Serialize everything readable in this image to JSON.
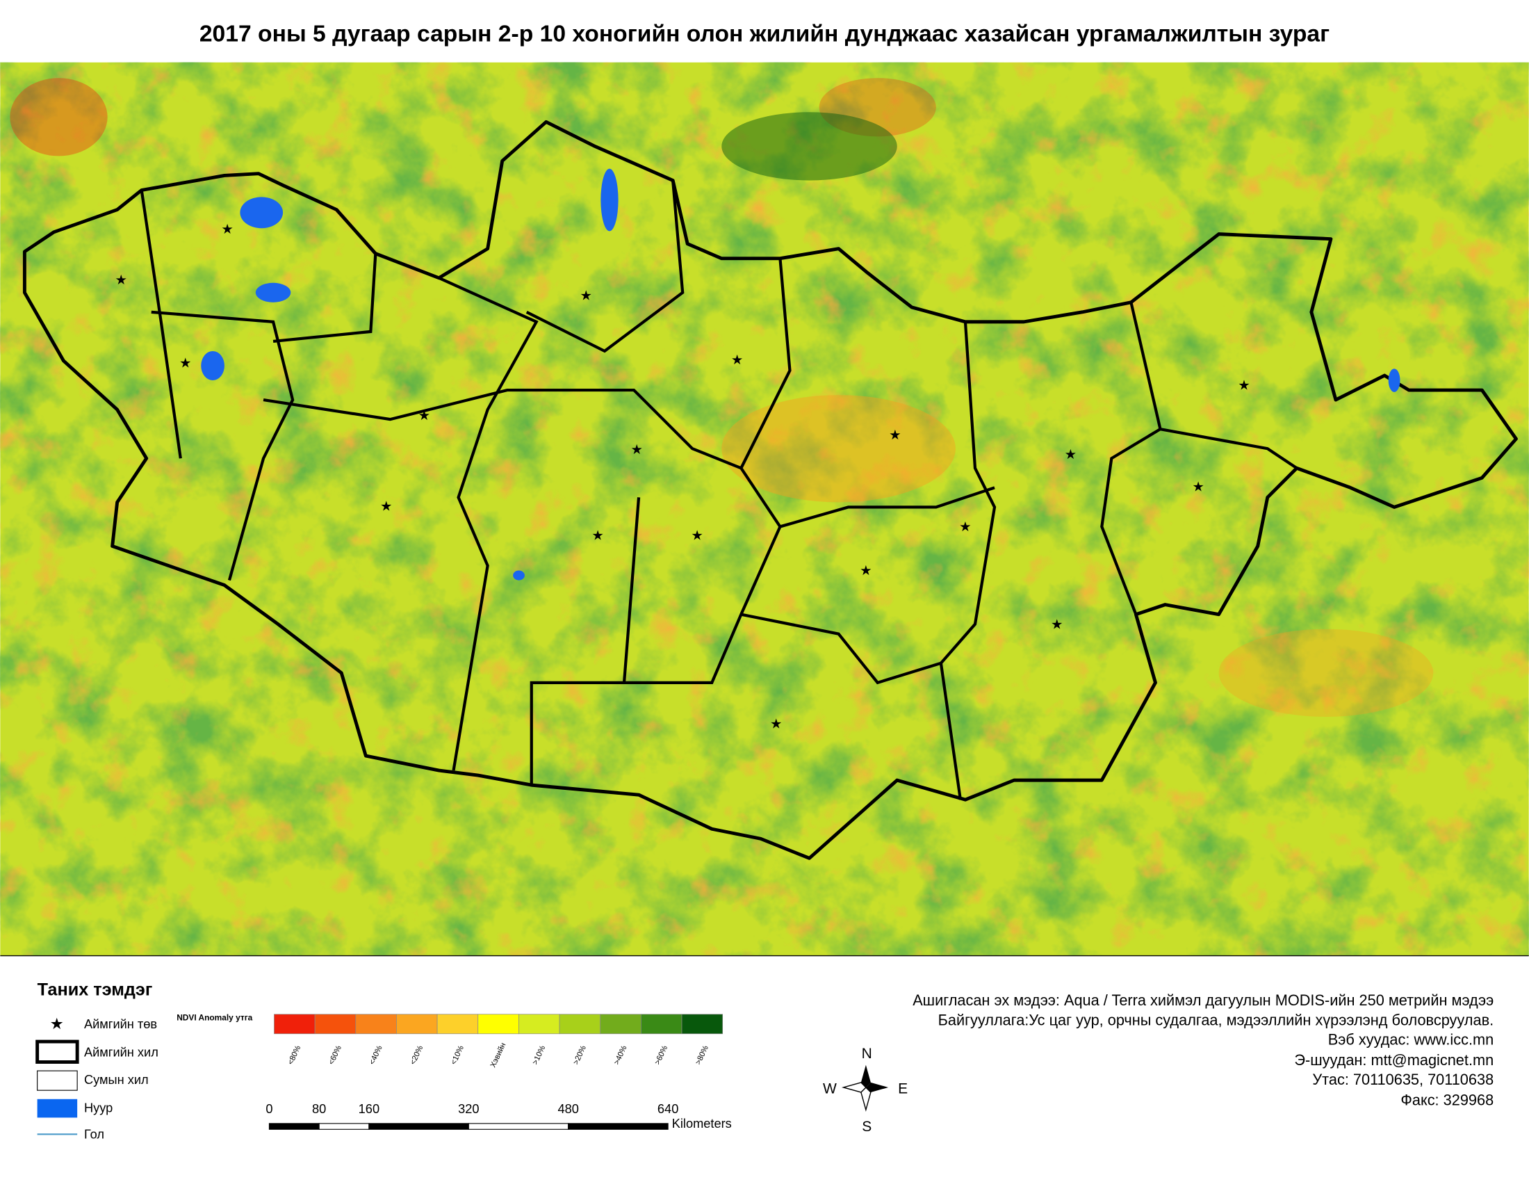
{
  "title": "2017 оны 5 дугаар сарын 2-р 10 хоногийн олон жилийн дунджаас хазайсан ургамалжилтын зураг",
  "legend": {
    "title": "Таних тэмдэг",
    "items": [
      "Аймгийн төв",
      "Аймгийн хил",
      "Сумын хил",
      "Нуур",
      "Гол"
    ]
  },
  "ndvi_scale": {
    "title": "NDVI Anomaly утга",
    "classes": [
      {
        "label": "<80%",
        "color": "#f0200a"
      },
      {
        "label": "<60%",
        "color": "#f5520c"
      },
      {
        "label": "<40%",
        "color": "#f8821a"
      },
      {
        "label": "<20%",
        "color": "#fba620"
      },
      {
        "label": "<10%",
        "color": "#fdd02a"
      },
      {
        "label": "Хэвийн",
        "color": "#ffff00"
      },
      {
        "label": ">10%",
        "color": "#d6ec20"
      },
      {
        "label": ">20%",
        "color": "#a8d01a"
      },
      {
        "label": ">40%",
        "color": "#72ac1c"
      },
      {
        "label": ">60%",
        "color": "#3a8a16"
      },
      {
        "label": ">80%",
        "color": "#08580c"
      }
    ]
  },
  "scale_bar": {
    "ticks": [
      0,
      80,
      160,
      320,
      480,
      640
    ],
    "unit": "Kilometers"
  },
  "compass": {
    "n": "N",
    "e": "E",
    "s": "S",
    "w": "W"
  },
  "info": [
    "Ашигласан эх мэдээ: Aqua / Terra хиймэл дагуулын MODIS-ийн 250 метрийн мэдээ",
    "Байгууллага:Ус цаг уур, орчны судалгаа, мэдээллийн хүрээлэнд боловсруулав.",
    "Вэб хуудас: www.icc.mn",
    "Э-шуудан: mtt@magicnet.mn",
    "Утас: 70110635, 70110638",
    "Факс: 329968"
  ]
}
